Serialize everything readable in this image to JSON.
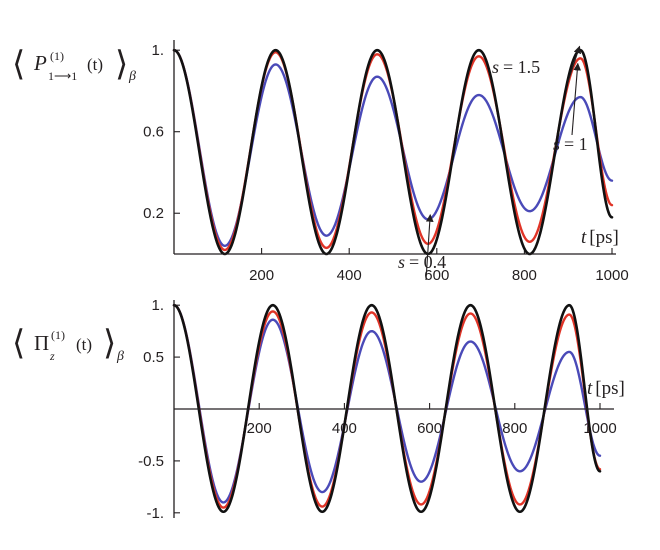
{
  "chart_data": [
    {
      "type": "line",
      "ylabel": "⟨P(1)1⟶1 (t)⟩β",
      "ylabel_parts": {
        "symbol": "P",
        "superscript": "(1)",
        "subscript": "1⟶1",
        "argument": "(t)",
        "ensemble": "β"
      },
      "xlabel": "t[ps]",
      "xlabel_parts": {
        "var": "t",
        "unit": "[ps]"
      },
      "xlim": [
        0,
        1000
      ],
      "ylim": [
        0,
        1.05
      ],
      "xticks": [
        "200",
        "400",
        "600",
        "800",
        "1000"
      ],
      "xtick_values": [
        200,
        400,
        600,
        800,
        1000
      ],
      "yticks": [
        "0.2",
        "0.6",
        "1."
      ],
      "ytick_values": [
        0.2,
        0.6,
        1.0
      ],
      "period_ps": 232,
      "series": [
        {
          "key": "s04",
          "color": "#4a4ab8",
          "x": [
            0,
            116,
            232,
            348,
            464,
            580,
            696,
            812,
            928,
            1000
          ],
          "y": [
            1.0,
            0.04,
            0.93,
            0.09,
            0.87,
            0.17,
            0.78,
            0.21,
            0.77,
            0.36
          ]
        },
        {
          "key": "s1",
          "color": "#e03427",
          "x": [
            0,
            116,
            232,
            348,
            464,
            580,
            696,
            812,
            928,
            1000
          ],
          "y": [
            1.0,
            0.02,
            0.99,
            0.03,
            0.98,
            0.05,
            0.97,
            0.06,
            0.96,
            0.24
          ]
        },
        {
          "key": "s15",
          "color": "#111111",
          "x": [
            0,
            116,
            232,
            348,
            464,
            580,
            696,
            812,
            928,
            1000
          ],
          "y": [
            1.0,
            0.0,
            1.0,
            0.0,
            1.0,
            0.0,
            1.0,
            0.0,
            1.0,
            0.18
          ]
        }
      ],
      "annotations": [
        {
          "var": "s",
          "value": "= 0.4",
          "target_series": "s04",
          "target_x": 585
        },
        {
          "var": "s",
          "value": "= 1.5",
          "target_series": "s15",
          "target_x": 926
        },
        {
          "var": "s",
          "value": "= 1",
          "target_series": "s1",
          "target_x": 922
        }
      ]
    },
    {
      "type": "line",
      "ylabel": "⟨Π(1)z (t)⟩β",
      "ylabel_parts": {
        "symbol": "Π",
        "superscript": "(1)",
        "subscript": "z",
        "argument": "(t)",
        "ensemble": "β"
      },
      "xlabel": "t[ps]",
      "xlabel_parts": {
        "var": "t",
        "unit": "[ps]"
      },
      "xlim": [
        0,
        1000
      ],
      "ylim": [
        -1.05,
        1.05
      ],
      "xticks": [
        "200",
        "400",
        "600",
        "800",
        "1000"
      ],
      "xtick_values": [
        200,
        400,
        600,
        800,
        1000
      ],
      "yticks": [
        "-1.",
        "-0.5",
        "0.5",
        "1."
      ],
      "ytick_values": [
        -1.0,
        -0.5,
        0.5,
        1.0
      ],
      "period_ps": 232,
      "series": [
        {
          "key": "s04",
          "color": "#4a4ab8",
          "x": [
            0,
            116,
            232,
            348,
            464,
            580,
            696,
            812,
            928,
            1000
          ],
          "y": [
            1.0,
            -0.9,
            0.86,
            -0.8,
            0.75,
            -0.7,
            0.65,
            -0.6,
            0.55,
            -0.45
          ]
        },
        {
          "key": "s1",
          "color": "#e03427",
          "x": [
            0,
            116,
            232,
            348,
            464,
            580,
            696,
            812,
            928,
            1000
          ],
          "y": [
            1.0,
            -0.95,
            0.94,
            -0.94,
            0.93,
            -0.92,
            0.92,
            -0.92,
            0.91,
            -0.58
          ]
        },
        {
          "key": "s15",
          "color": "#111111",
          "x": [
            0,
            116,
            232,
            348,
            464,
            580,
            696,
            812,
            928,
            1000
          ],
          "y": [
            1.0,
            -0.99,
            1.0,
            -0.99,
            1.0,
            -0.99,
            1.0,
            -0.99,
            1.0,
            -0.6
          ]
        }
      ]
    }
  ]
}
